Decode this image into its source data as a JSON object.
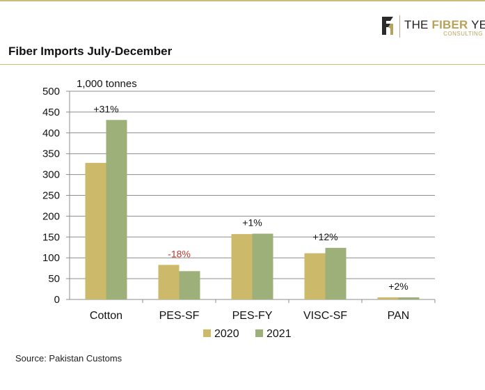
{
  "header": {
    "logo_text_plain": "THE ",
    "logo_text_highlight": "FIBER",
    "logo_text_end": " YEAR",
    "logo_sub": "CONSULTING"
  },
  "page_title": "Fiber Imports July-December",
  "source": "Source: Pakistan Customs",
  "colors": {
    "series_2020": "#cdb96a",
    "series_2021": "#9eb07a",
    "negative_label": "#c0392b",
    "rule": "#c9bd7a"
  },
  "chart_data": {
    "type": "bar",
    "title": "",
    "unit_label": "1,000 tonnes",
    "xlabel": "",
    "ylabel": "",
    "ylim": [
      0,
      500
    ],
    "yticks": [
      0,
      50,
      100,
      150,
      200,
      250,
      300,
      350,
      400,
      450,
      500
    ],
    "categories": [
      "Cotton",
      "PES-SF",
      "PES-FY",
      "VISC-SF",
      "PAN"
    ],
    "series": [
      {
        "name": "2020",
        "values": [
          328,
          83,
          157,
          111,
          5
        ]
      },
      {
        "name": "2021",
        "values": [
          431,
          68,
          158,
          124,
          5
        ]
      }
    ],
    "annotations": [
      "+31%",
      "-18%",
      "+1%",
      "+12%",
      "+2%"
    ],
    "grid": true,
    "legend_position": "bottom"
  }
}
